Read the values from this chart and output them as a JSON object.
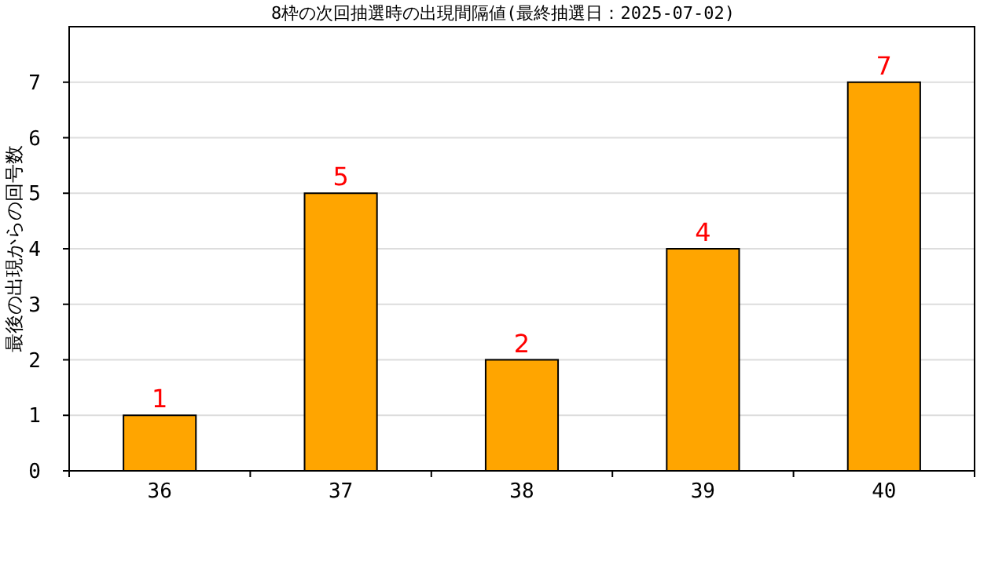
{
  "chart_data": {
    "type": "bar",
    "title": "8枠の次回抽選時の出現間隔値(最終抽選日：2025-07-02)",
    "ylabel": "最後の出現からの回号数",
    "categories": [
      "36",
      "37",
      "38",
      "39",
      "40"
    ],
    "values": [
      1,
      5,
      2,
      4,
      7
    ],
    "color": "#ffa500",
    "data_labels": true,
    "ylim": [
      0,
      8
    ],
    "yticks": [
      0,
      1,
      2,
      3,
      4,
      5,
      6,
      7
    ],
    "grid": "y"
  }
}
